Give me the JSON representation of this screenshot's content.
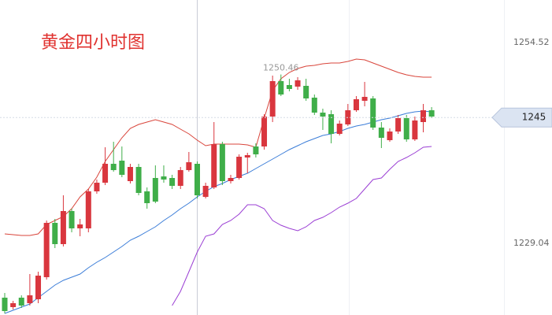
{
  "chart_data": {
    "type": "candlestick",
    "title": "黄金四小时图",
    "ylim": [
      1219.92,
      1259.92
    ],
    "yticks": [
      1254.52,
      1229.04
    ],
    "grid": false,
    "up_color": "#d9363e",
    "down_color": "#3fae49",
    "open": [
      1222.12,
      1220.92,
      1222.12,
      1221.42,
      1221.92,
      1224.72,
      1231.62,
      1228.92,
      1233.12,
      1230.92,
      1230.92,
      1235.62,
      1236.72,
      1239.12,
      1239.52,
      1236.92,
      1238.72,
      1235.62,
      1237.32,
      1237.52,
      1237.32,
      1236.32,
      1238.32,
      1239.12,
      1234.92,
      1236.12,
      1241.62,
      1236.92,
      1237.32,
      1239.92,
      1241.32,
      1241.32,
      1245.12,
      1249.62,
      1249.12,
      1248.92,
      1249.02,
      1247.52,
      1245.62,
      1245.42,
      1242.92,
      1244.12,
      1245.92,
      1247.12,
      1247.42,
      1243.72,
      1242.12,
      1243.22,
      1244.92,
      1242.22,
      1244.42,
      1245.92
    ],
    "high": [
      1222.72,
      1221.72,
      1222.42,
      1225.12,
      1225.42,
      1231.92,
      1232.12,
      1235.12,
      1233.42,
      1232.12,
      1235.92,
      1237.12,
      1241.22,
      1241.92,
      1241.32,
      1239.12,
      1239.12,
      1236.12,
      1238.92,
      1238.92,
      1237.72,
      1238.72,
      1240.62,
      1239.42,
      1236.72,
      1244.42,
      1241.92,
      1237.72,
      1240.32,
      1240.52,
      1241.72,
      1245.42,
      1250.32,
      1250.46,
      1249.92,
      1250.12,
      1249.92,
      1247.92,
      1246.12,
      1245.92,
      1244.62,
      1246.72,
      1247.72,
      1249.52,
      1247.72,
      1244.42,
      1243.62,
      1245.32,
      1245.32,
      1245.12,
      1246.72,
      1246.32
    ],
    "low": [
      1220.12,
      1220.62,
      1220.82,
      1221.12,
      1221.42,
      1224.42,
      1228.42,
      1228.62,
      1230.42,
      1229.92,
      1230.42,
      1235.32,
      1236.42,
      1238.12,
      1237.42,
      1236.62,
      1235.12,
      1233.42,
      1234.12,
      1236.72,
      1235.92,
      1235.92,
      1238.12,
      1234.72,
      1234.72,
      1235.92,
      1236.42,
      1236.62,
      1237.12,
      1237.92,
      1239.92,
      1240.92,
      1244.42,
      1247.72,
      1248.32,
      1248.52,
      1247.12,
      1245.32,
      1243.42,
      1241.72,
      1242.72,
      1243.92,
      1245.72,
      1246.42,
      1243.42,
      1241.12,
      1241.92,
      1242.92,
      1241.92,
      1242.02,
      1243.12,
      1244.92
    ],
    "close": [
      1220.42,
      1221.42,
      1221.12,
      1222.42,
      1224.92,
      1231.62,
      1228.92,
      1233.12,
      1230.92,
      1231.42,
      1235.62,
      1236.72,
      1239.12,
      1238.32,
      1237.72,
      1238.72,
      1235.42,
      1234.12,
      1234.32,
      1237.12,
      1236.32,
      1238.32,
      1239.32,
      1235.12,
      1236.32,
      1241.62,
      1236.92,
      1237.32,
      1240.02,
      1240.22,
      1240.32,
      1245.12,
      1249.62,
      1247.92,
      1248.62,
      1249.72,
      1247.42,
      1245.62,
      1245.12,
      1242.92,
      1244.22,
      1245.92,
      1247.32,
      1247.62,
      1243.72,
      1242.42,
      1243.22,
      1244.92,
      1242.22,
      1244.62,
      1245.92,
      1245.12
    ],
    "bands": [
      {
        "color": "#d9453b",
        "values": [
          1230.22,
          1230.12,
          1230.02,
          1230.02,
          1230.22,
          1231.42,
          1231.92,
          1232.42,
          1233.42,
          1234.92,
          1235.92,
          1237.42,
          1239.42,
          1240.92,
          1242.42,
          1243.62,
          1244.12,
          1244.42,
          1244.72,
          1244.42,
          1244.12,
          1243.52,
          1242.92,
          1242.12,
          1241.42,
          1241.62,
          1241.62,
          1241.62,
          1241.62,
          1241.52,
          1241.22,
          1244.92,
          1248.42,
          1249.92,
          1250.72,
          1251.22,
          1251.52,
          1251.62,
          1251.82,
          1251.92,
          1251.92,
          1252.12,
          1252.42,
          1252.32,
          1251.92,
          1251.52,
          1251.12,
          1250.72,
          1250.42,
          1250.22,
          1250.12,
          1250.12
        ]
      },
      {
        "color": "#3b7dd8",
        "values": [
          1220.12,
          1220.52,
          1220.92,
          1221.32,
          1222.12,
          1222.92,
          1223.72,
          1224.32,
          1224.72,
          1225.12,
          1225.92,
          1226.62,
          1227.22,
          1227.92,
          1228.62,
          1229.42,
          1229.92,
          1230.52,
          1231.12,
          1231.92,
          1232.62,
          1233.42,
          1234.12,
          1234.92,
          1235.62,
          1236.22,
          1236.62,
          1237.12,
          1237.52,
          1237.92,
          1238.52,
          1239.12,
          1239.72,
          1240.32,
          1240.92,
          1241.42,
          1241.92,
          1242.32,
          1242.72,
          1242.92,
          1243.22,
          1243.62,
          1243.92,
          1244.12,
          1244.42,
          1244.72,
          1244.92,
          1245.22,
          1245.52,
          1245.72,
          1245.82,
          1245.72
        ]
      },
      {
        "color": "#9b3fd4",
        "values": [
          null,
          null,
          null,
          null,
          null,
          null,
          null,
          null,
          null,
          null,
          null,
          null,
          null,
          null,
          null,
          null,
          null,
          null,
          null,
          null,
          1221.12,
          1222.92,
          1225.42,
          1227.92,
          1229.92,
          1230.22,
          1231.42,
          1231.92,
          1232.72,
          1233.92,
          1233.92,
          1233.42,
          1231.92,
          1231.32,
          1230.92,
          1230.62,
          1231.12,
          1231.92,
          1232.32,
          1232.92,
          1233.62,
          1234.12,
          1234.72,
          1235.92,
          1237.12,
          1237.32,
          1238.42,
          1239.42,
          1239.92,
          1240.52,
          1241.22,
          1241.32
        ]
      }
    ],
    "last_price": 1245,
    "high_annotation": 1250.46
  }
}
